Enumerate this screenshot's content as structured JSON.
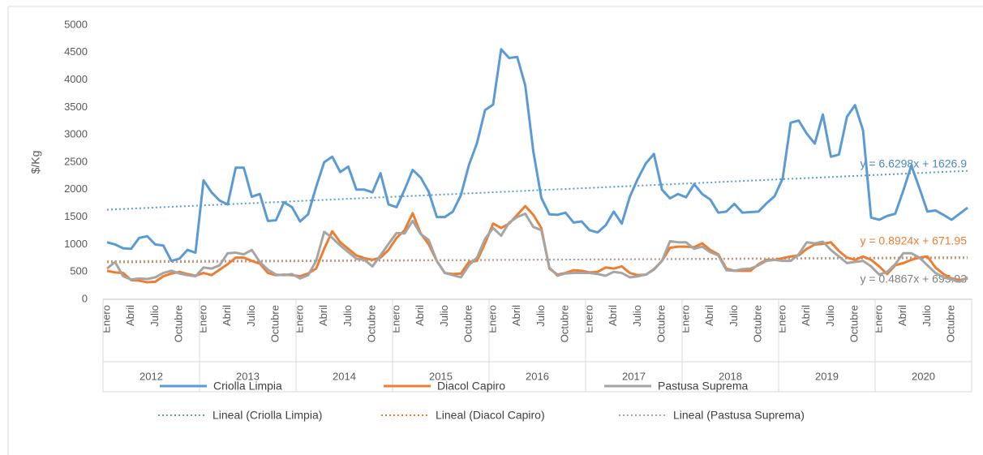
{
  "chart_data": {
    "type": "line",
    "ylabel": "$/Kg",
    "ylim": [
      0,
      5000
    ],
    "yticks": [
      0,
      500,
      1000,
      1500,
      2000,
      2500,
      3000,
      3500,
      4000,
      4500,
      5000
    ],
    "grid": false,
    "legend": "bottom",
    "groups": [
      "2012",
      "2013",
      "2014",
      "2015",
      "2016",
      "2017",
      "2018",
      "2019",
      "2020"
    ],
    "categories": [
      "Enero",
      null,
      null,
      "Abril",
      null,
      null,
      "Julio",
      null,
      null,
      "Octubre",
      null,
      null,
      "Enero",
      null,
      null,
      "Abril",
      null,
      null,
      "Julio",
      null,
      null,
      "Octubre",
      null,
      null,
      "Enero",
      null,
      null,
      "Abril",
      null,
      null,
      "Julio",
      null,
      null,
      "Octubre",
      null,
      null,
      "Enero",
      null,
      null,
      "Abril",
      null,
      null,
      "Julio",
      null,
      null,
      "Octubre",
      null,
      null,
      "Enero",
      null,
      null,
      "Abril",
      null,
      null,
      "Julio",
      null,
      null,
      "Octubre",
      null,
      null,
      "Enero",
      null,
      null,
      "Abril",
      null,
      null,
      "Julio",
      null,
      null,
      "Octubre",
      null,
      null,
      "Enero",
      null,
      null,
      "Abril",
      null,
      null,
      "Julio",
      null,
      null,
      "Octubre",
      null,
      null,
      "Enero",
      null,
      null,
      "Abril",
      null,
      null,
      "Julio",
      null,
      null,
      "Octubre",
      null,
      null,
      "Enero",
      null,
      null,
      "Abril",
      null,
      null,
      "Julio",
      null,
      null,
      "Octubre",
      null,
      null
    ],
    "series": [
      {
        "name": "Criolla Limpia",
        "color": "#5b9bd5",
        "values": [
          1040,
          1000,
          930,
          920,
          1120,
          1150,
          1000,
          980,
          700,
          740,
          900,
          850,
          2170,
          1950,
          1800,
          1730,
          2400,
          2400,
          1870,
          1920,
          1430,
          1440,
          1770,
          1680,
          1420,
          1550,
          2050,
          2500,
          2600,
          2320,
          2420,
          2000,
          2000,
          1950,
          2300,
          1730,
          1680,
          2000,
          2360,
          2220,
          1960,
          1500,
          1500,
          1600,
          1900,
          2450,
          2850,
          3450,
          3550,
          4560,
          4400,
          4420,
          3900,
          2700,
          1850,
          1550,
          1540,
          1580,
          1400,
          1420,
          1260,
          1220,
          1350,
          1600,
          1380,
          1870,
          2200,
          2480,
          2650,
          2000,
          1840,
          1920,
          1860,
          2100,
          1920,
          1820,
          1580,
          1600,
          1740,
          1580,
          1590,
          1600,
          1750,
          1880,
          2200,
          3220,
          3260,
          3020,
          2840,
          3370,
          2600,
          2640,
          3330,
          3540,
          3080,
          1490,
          1450,
          1520,
          1560,
          1980,
          2440,
          2030,
          1600,
          1620,
          1540,
          1450,
          1560,
          1670
        ]
      },
      {
        "name": "Diacol Capiro",
        "color": "#ed7d31",
        "values": [
          520,
          490,
          480,
          350,
          340,
          310,
          320,
          420,
          470,
          500,
          460,
          430,
          480,
          440,
          540,
          640,
          760,
          760,
          700,
          650,
          480,
          440,
          450,
          440,
          420,
          470,
          560,
          920,
          1240,
          1040,
          920,
          800,
          750,
          720,
          760,
          900,
          1120,
          1260,
          1570,
          1200,
          1000,
          700,
          480,
          460,
          470,
          680,
          700,
          1020,
          1380,
          1300,
          1380,
          1540,
          1700,
          1540,
          1300,
          560,
          450,
          480,
          530,
          520,
          490,
          500,
          580,
          560,
          600,
          480,
          440,
          450,
          550,
          700,
          940,
          960,
          960,
          950,
          1020,
          900,
          820,
          560,
          520,
          520,
          520,
          640,
          720,
          720,
          750,
          780,
          800,
          920,
          1000,
          1010,
          1040,
          880,
          760,
          720,
          780,
          720,
          600,
          460,
          620,
          660,
          720,
          760,
          780,
          580,
          460,
          380,
          350,
          380
        ]
      },
      {
        "name": "Pastusa Suprema",
        "color": "#a5a5a5",
        "values": [
          560,
          680,
          420,
          360,
          380,
          370,
          400,
          480,
          520,
          470,
          440,
          420,
          580,
          560,
          620,
          840,
          850,
          820,
          900,
          680,
          540,
          450,
          440,
          460,
          380,
          440,
          700,
          1230,
          1120,
          980,
          860,
          740,
          720,
          600,
          800,
          1010,
          1210,
          1200,
          1430,
          1190,
          1080,
          700,
          480,
          440,
          400,
          620,
          760,
          1100,
          1300,
          1160,
          1400,
          1500,
          1560,
          1320,
          1260,
          580,
          430,
          470,
          480,
          480,
          480,
          460,
          430,
          500,
          480,
          400,
          420,
          450,
          540,
          700,
          1060,
          1040,
          1040,
          920,
          960,
          860,
          800,
          530,
          520,
          550,
          560,
          620,
          700,
          720,
          700,
          700,
          820,
          1040,
          1020,
          1050,
          900,
          780,
          660,
          680,
          700,
          600,
          450,
          500,
          640,
          840,
          840,
          760,
          620,
          480,
          400,
          360,
          320,
          400
        ]
      }
    ],
    "trendlines": [
      {
        "name": "Lineal (Criolla Limpia)",
        "color": "#5b9bd5",
        "label_color": "#4a86c5",
        "slope": 6.6298,
        "intercept": 1626.9,
        "label": "y = 6.6298x + 1626.9"
      },
      {
        "name": "Lineal (Diacol Capiro)",
        "color": "#ed7d31",
        "label_color": "#ed7d31",
        "slope": 0.8924,
        "intercept": 671.95,
        "label": "y = 0.8924x + 671.95"
      },
      {
        "name": "Lineal (Pastusa Suprema)",
        "color": "#a5a5a5",
        "label_color": "#7f7f7f",
        "slope": 0.4867,
        "intercept": 695.93,
        "label": "y = 0.4867x + 695.93"
      }
    ]
  }
}
